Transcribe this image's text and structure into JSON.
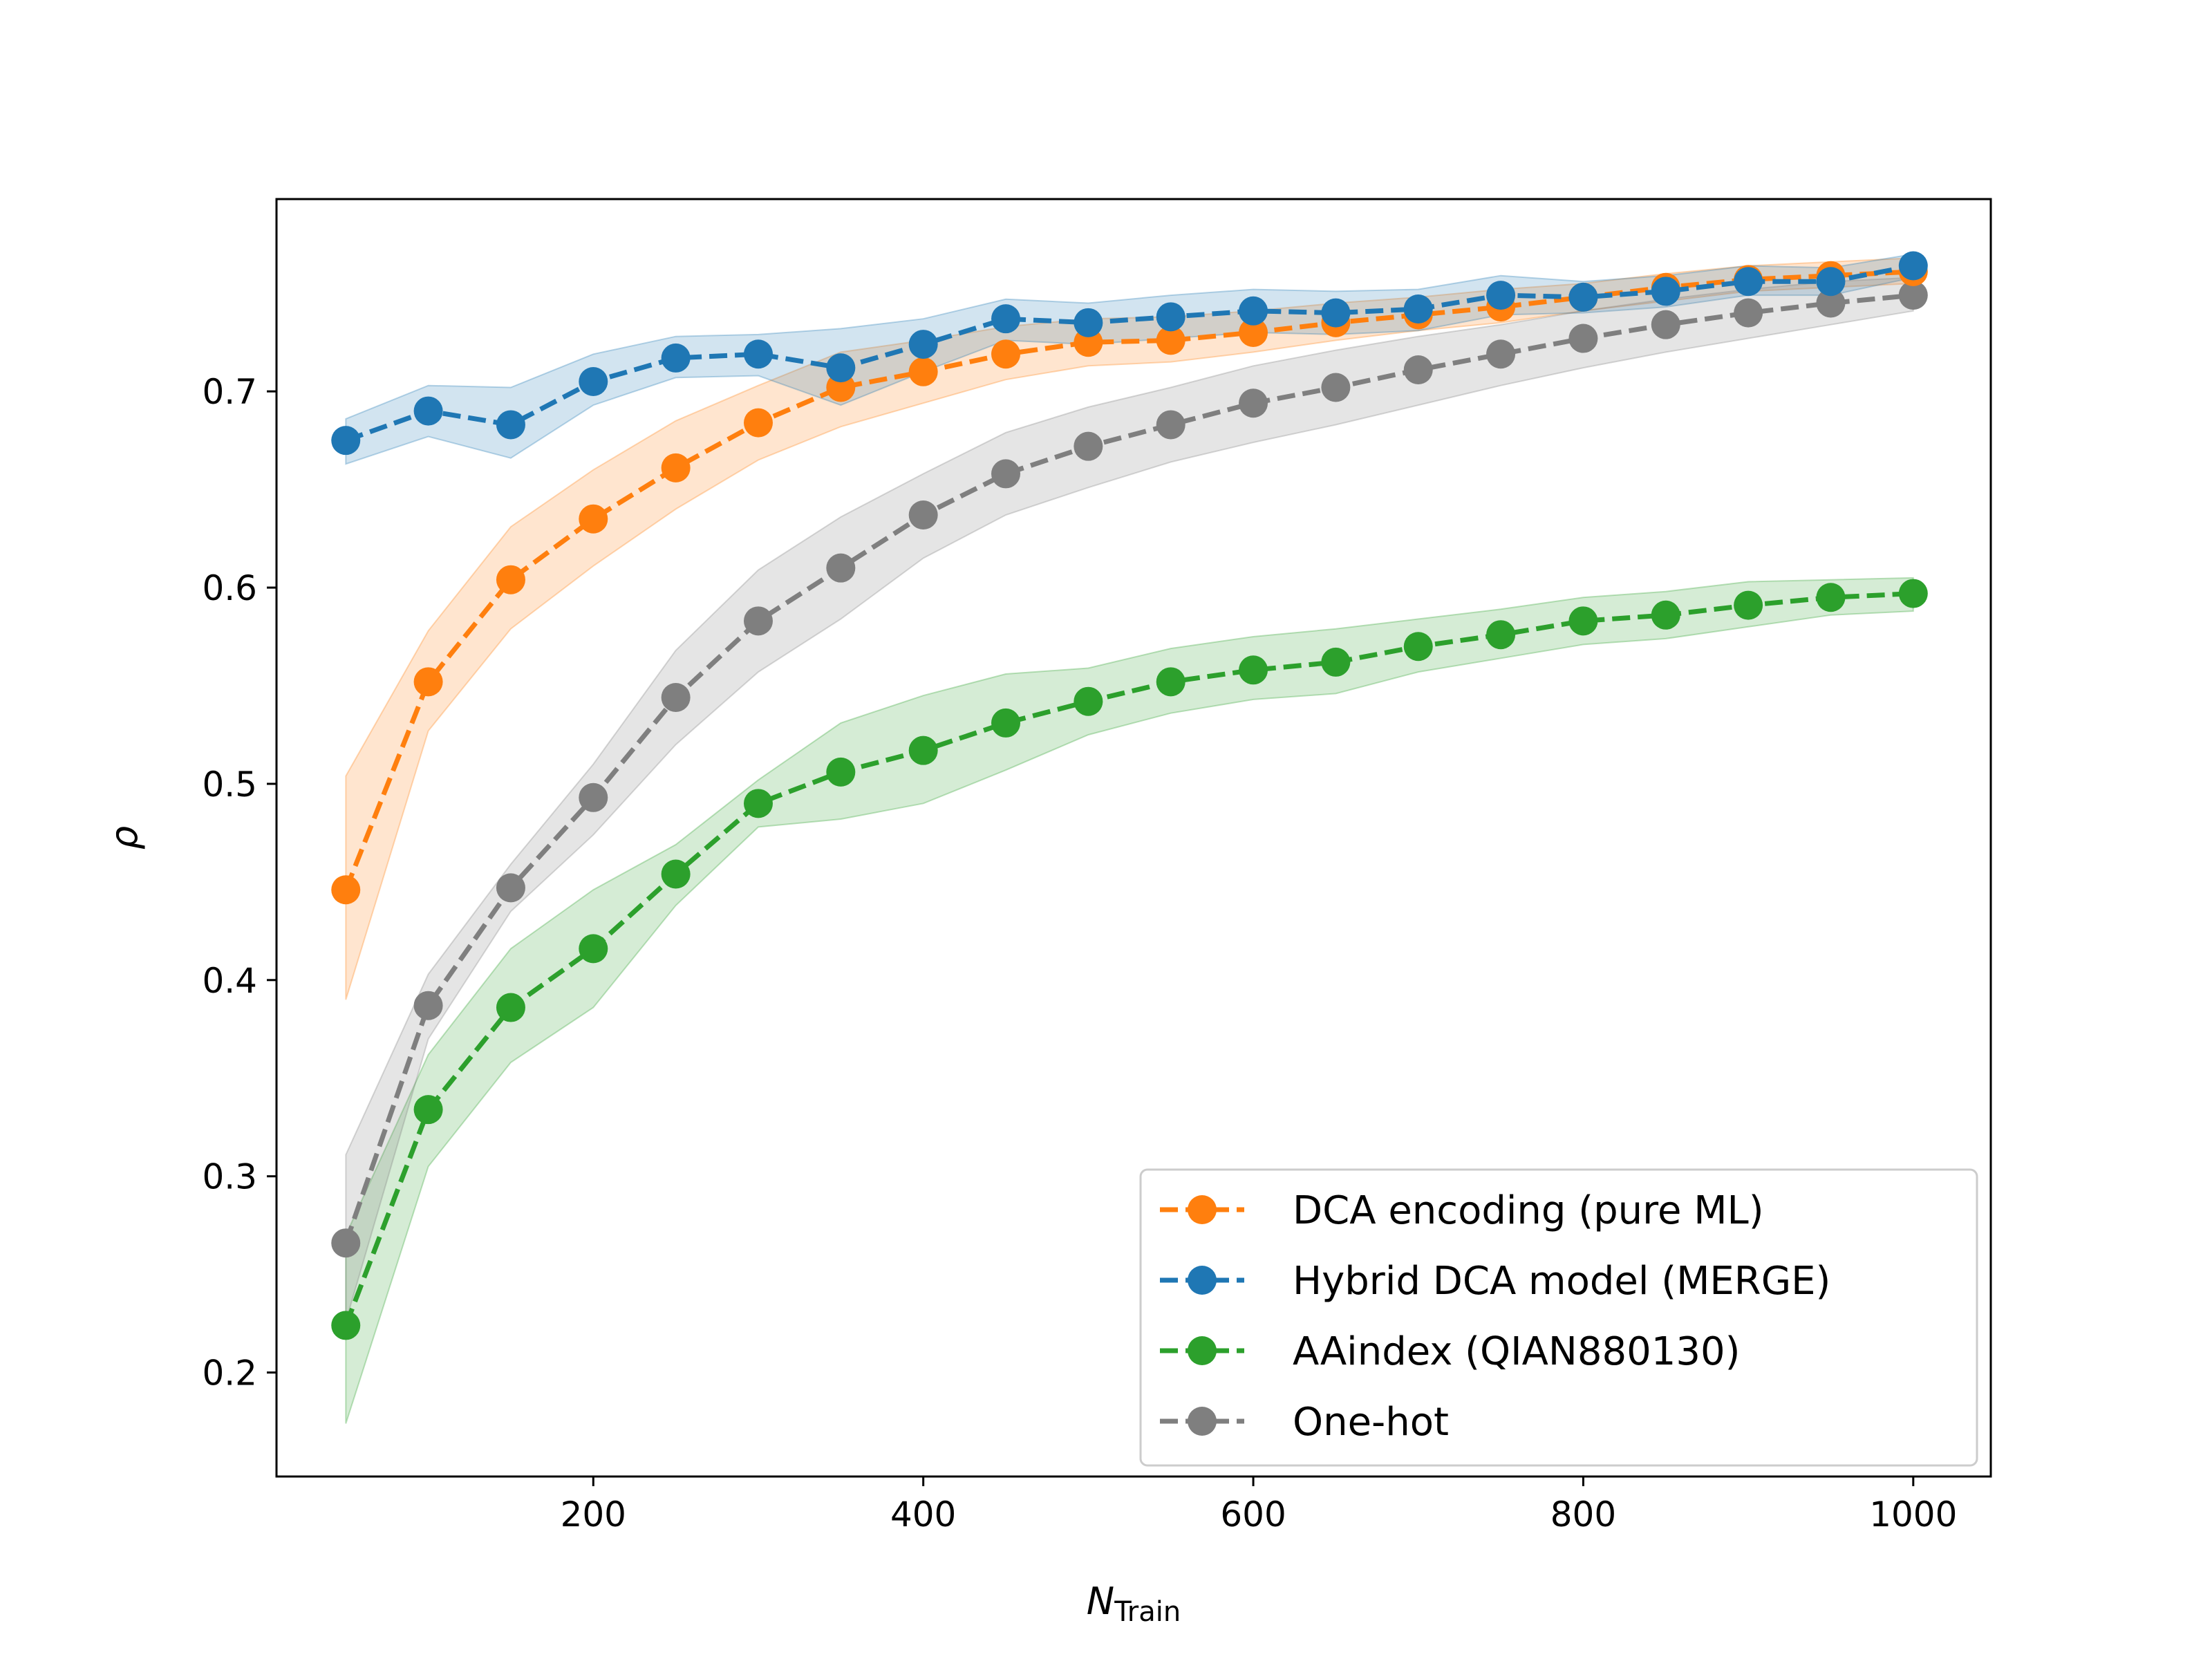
{
  "chart_data": {
    "type": "line",
    "xlabel": "N",
    "xlabel_sub": "Train",
    "ylabel": "ρ",
    "xlim": [
      8,
      1047
    ],
    "ylim": [
      0.147,
      0.798
    ],
    "xticks": [
      200,
      400,
      600,
      800,
      1000
    ],
    "yticks": [
      0.2,
      0.3,
      0.4,
      0.5,
      0.6,
      0.7
    ],
    "grid": false,
    "legend_position": "lower-right",
    "x": [
      50,
      100,
      150,
      200,
      250,
      300,
      350,
      400,
      450,
      500,
      550,
      600,
      650,
      700,
      750,
      800,
      850,
      900,
      950,
      1000
    ],
    "series": [
      {
        "name": "DCA encoding (pure ML)",
        "color": "#ff7f0e",
        "values": [
          0.446,
          0.552,
          0.604,
          0.635,
          0.661,
          0.684,
          0.702,
          0.71,
          0.719,
          0.725,
          0.726,
          0.73,
          0.735,
          0.739,
          0.743,
          0.748,
          0.753,
          0.757,
          0.759,
          0.761
        ],
        "lower": [
          0.39,
          0.527,
          0.579,
          0.611,
          0.64,
          0.665,
          0.682,
          0.694,
          0.706,
          0.713,
          0.715,
          0.72,
          0.726,
          0.731,
          0.735,
          0.741,
          0.746,
          0.751,
          0.753,
          0.755
        ],
        "upper": [
          0.504,
          0.578,
          0.631,
          0.66,
          0.685,
          0.703,
          0.72,
          0.726,
          0.733,
          0.737,
          0.738,
          0.741,
          0.745,
          0.748,
          0.752,
          0.755,
          0.76,
          0.764,
          0.766,
          0.768
        ]
      },
      {
        "name": "Hybrid DCA model (MERGE)",
        "color": "#1f77b4",
        "values": [
          0.675,
          0.69,
          0.683,
          0.705,
          0.717,
          0.719,
          0.712,
          0.724,
          0.737,
          0.735,
          0.738,
          0.741,
          0.74,
          0.742,
          0.749,
          0.748,
          0.751,
          0.756,
          0.756,
          0.764
        ],
        "lower": [
          0.663,
          0.677,
          0.666,
          0.693,
          0.707,
          0.708,
          0.693,
          0.71,
          0.726,
          0.724,
          0.727,
          0.73,
          0.729,
          0.731,
          0.739,
          0.74,
          0.743,
          0.749,
          0.749,
          0.758
        ],
        "upper": [
          0.686,
          0.703,
          0.702,
          0.719,
          0.728,
          0.729,
          0.732,
          0.737,
          0.747,
          0.745,
          0.749,
          0.752,
          0.751,
          0.752,
          0.759,
          0.756,
          0.759,
          0.764,
          0.763,
          0.77
        ]
      },
      {
        "name": "AAindex (QIAN880130)",
        "color": "#2ca02c",
        "values": [
          0.224,
          0.334,
          0.386,
          0.416,
          0.454,
          0.49,
          0.506,
          0.517,
          0.531,
          0.542,
          0.552,
          0.558,
          0.562,
          0.57,
          0.576,
          0.583,
          0.586,
          0.591,
          0.595,
          0.597
        ],
        "lower": [
          0.174,
          0.305,
          0.358,
          0.386,
          0.438,
          0.478,
          0.482,
          0.49,
          0.507,
          0.525,
          0.536,
          0.543,
          0.546,
          0.557,
          0.564,
          0.571,
          0.574,
          0.58,
          0.586,
          0.588
        ],
        "upper": [
          0.27,
          0.362,
          0.416,
          0.446,
          0.469,
          0.502,
          0.531,
          0.545,
          0.556,
          0.559,
          0.569,
          0.575,
          0.579,
          0.584,
          0.589,
          0.595,
          0.598,
          0.603,
          0.604,
          0.605
        ]
      },
      {
        "name": "One-hot",
        "color": "#7f7f7f",
        "values": [
          0.266,
          0.387,
          0.447,
          0.493,
          0.544,
          0.583,
          0.61,
          0.637,
          0.658,
          0.672,
          0.683,
          0.694,
          0.702,
          0.711,
          0.719,
          0.727,
          0.734,
          0.74,
          0.745,
          0.749
        ],
        "lower": [
          0.226,
          0.37,
          0.435,
          0.474,
          0.52,
          0.557,
          0.584,
          0.615,
          0.637,
          0.651,
          0.664,
          0.674,
          0.683,
          0.693,
          0.703,
          0.712,
          0.72,
          0.727,
          0.734,
          0.741
        ],
        "upper": [
          0.311,
          0.403,
          0.459,
          0.51,
          0.568,
          0.609,
          0.636,
          0.658,
          0.679,
          0.692,
          0.702,
          0.713,
          0.721,
          0.728,
          0.734,
          0.741,
          0.747,
          0.752,
          0.756,
          0.758
        ]
      }
    ]
  }
}
